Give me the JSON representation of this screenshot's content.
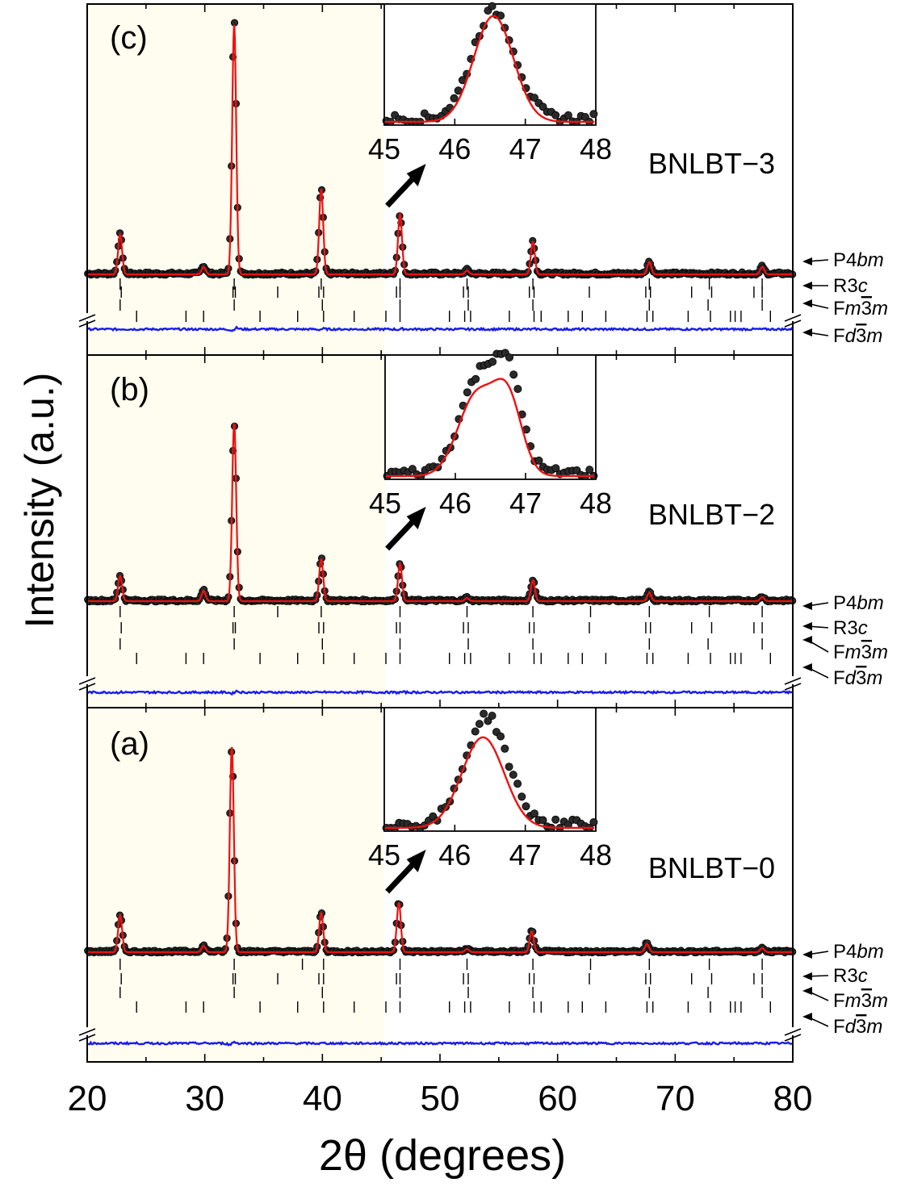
{
  "colors": {
    "panel_fill": "#fffdef",
    "fit": "#ee1111",
    "observed_fill": "#2a2a2a",
    "observed_stroke": "#000000",
    "difference": "#1a1aee",
    "frame": "#000000"
  },
  "chart_data": {
    "type": "scatter",
    "description_type": "stacked XRD Rietveld refinement panels",
    "xlabel": "2θ (degrees)",
    "ylabel": "Intensity (a.u.)",
    "xlim": [
      20,
      80
    ],
    "x_ticks": [
      "20",
      "30",
      "40",
      "50",
      "60",
      "70",
      "80"
    ],
    "phase_labels": [
      {
        "prefix": "P4",
        "italic": "bm",
        "bar": ""
      },
      {
        "prefix": "R3",
        "italic": "c",
        "bar": ""
      },
      {
        "prefix": "F",
        "italic": "m",
        "bar": "3",
        "suffix_italic": "m"
      },
      {
        "prefix": "F",
        "italic": "d",
        "bar": "3",
        "suffix_italic": "m"
      }
    ],
    "inset": {
      "xlim": [
        45,
        48
      ],
      "ticks": [
        "45",
        "46",
        "47",
        "48"
      ]
    },
    "panels": [
      {
        "id": "c",
        "tag": "(c)",
        "sample": "BNLBT−3",
        "peaks": [
          {
            "x": 22.8,
            "h": 0.16
          },
          {
            "x": 29.9,
            "h": 0.03
          },
          {
            "x": 32.5,
            "h": 1.0
          },
          {
            "x": 39.9,
            "h": 0.34
          },
          {
            "x": 46.6,
            "h": 0.24
          },
          {
            "x": 52.3,
            "h": 0.015
          },
          {
            "x": 57.9,
            "h": 0.13
          },
          {
            "x": 67.8,
            "h": 0.05
          },
          {
            "x": 77.4,
            "h": 0.03
          }
        ],
        "inset_peaks": [
          {
            "x": 46.55,
            "h": 1.0,
            "w": 0.3
          }
        ],
        "inset_fit": [
          {
            "x": 46.55,
            "h": 0.98,
            "w": 0.28
          }
        ],
        "ticks": [
          [
            22.8,
            32.5,
            39.9,
            46.6,
            52.3,
            57.9,
            67.8,
            72.9,
            77.4
          ],
          [
            22.9,
            32.4,
            32.6,
            36.2,
            39.7,
            40.1,
            46.3,
            46.6,
            52.0,
            52.4,
            57.6,
            58.0,
            62.7,
            67.5,
            67.9,
            71.4,
            73.1,
            76.7,
            77.4
          ],
          [
            22.8,
            32.5,
            40.0,
            46.6,
            52.4,
            57.9,
            67.8,
            72.8,
            77.4
          ],
          [
            24.2,
            28.4,
            29.9,
            34.7,
            37.9,
            40.1,
            42.7,
            45.4,
            46.6,
            50.8,
            52.1,
            52.6,
            55.9,
            58.0,
            58.6,
            60.9,
            62.1,
            64.1,
            67.6,
            68.1,
            71.1,
            73.0,
            74.7,
            75.1,
            75.6,
            78.1
          ]
        ]
      },
      {
        "id": "b",
        "tag": "(b)",
        "sample": "BNLBT−2",
        "peaks": [
          {
            "x": 22.8,
            "h": 0.12
          },
          {
            "x": 29.9,
            "h": 0.05
          },
          {
            "x": 32.5,
            "h": 0.85
          },
          {
            "x": 39.9,
            "h": 0.2
          },
          {
            "x": 46.6,
            "h": 0.18
          },
          {
            "x": 52.3,
            "h": 0.015
          },
          {
            "x": 57.9,
            "h": 0.1
          },
          {
            "x": 67.8,
            "h": 0.04
          },
          {
            "x": 77.4,
            "h": 0.02
          }
        ],
        "inset_peaks": [
          {
            "x": 46.32,
            "h": 0.82,
            "w": 0.26
          },
          {
            "x": 46.75,
            "h": 0.82,
            "w": 0.2
          }
        ],
        "inset_fit": [
          {
            "x": 46.3,
            "h": 0.72,
            "w": 0.26
          },
          {
            "x": 46.75,
            "h": 0.66,
            "w": 0.2
          }
        ],
        "ticks": [
          [
            22.8,
            32.5,
            36.2,
            39.9,
            46.6,
            52.3,
            57.9,
            62.8,
            67.8,
            72.9,
            77.4
          ],
          [
            22.9,
            32.4,
            32.6,
            39.7,
            40.1,
            46.3,
            46.6,
            52.0,
            52.4,
            57.6,
            58.0,
            62.7,
            67.5,
            67.9,
            71.4,
            73.1,
            76.7,
            77.4
          ],
          [
            22.8,
            32.5,
            40.0,
            46.6,
            52.4,
            57.9,
            67.8,
            72.8,
            77.4
          ],
          [
            24.2,
            28.4,
            29.9,
            34.7,
            37.9,
            40.1,
            42.7,
            45.4,
            46.6,
            50.8,
            52.1,
            52.6,
            55.9,
            58.0,
            58.6,
            60.9,
            62.1,
            64.1,
            67.6,
            68.1,
            71.1,
            73.0,
            74.7,
            75.1,
            75.6,
            78.1
          ]
        ]
      },
      {
        "id": "a",
        "tag": "(a)",
        "sample": "BNLBT−0",
        "peaks": [
          {
            "x": 22.8,
            "h": 0.18
          },
          {
            "x": 29.9,
            "h": 0.03
          },
          {
            "x": 32.3,
            "h": 1.0
          },
          {
            "x": 39.9,
            "h": 0.19
          },
          {
            "x": 46.5,
            "h": 0.24
          },
          {
            "x": 52.3,
            "h": 0.015
          },
          {
            "x": 57.8,
            "h": 0.1
          },
          {
            "x": 67.6,
            "h": 0.04
          },
          {
            "x": 77.4,
            "h": 0.02
          }
        ],
        "inset_peaks": [
          {
            "x": 46.45,
            "h": 0.98,
            "w": 0.3
          }
        ],
        "inset_fit": [
          {
            "x": 46.4,
            "h": 0.82,
            "w": 0.3
          }
        ],
        "ticks": [
          [
            22.8,
            32.5,
            38.3,
            40.1,
            46.6,
            52.3,
            57.9,
            62.8,
            67.8,
            72.9,
            77.4
          ],
          [
            22.9,
            32.4,
            32.6,
            36.2,
            39.7,
            40.1,
            46.3,
            46.6,
            52.0,
            52.4,
            57.6,
            58.0,
            62.7,
            67.5,
            67.9,
            71.4,
            73.1,
            76.7,
            77.4
          ],
          [
            22.8,
            32.5,
            40.0,
            46.6,
            52.4,
            57.9,
            67.8,
            72.8,
            77.4
          ],
          [
            24.2,
            28.4,
            29.9,
            34.7,
            37.9,
            40.1,
            42.7,
            45.4,
            46.6,
            50.8,
            52.1,
            52.6,
            55.9,
            58.0,
            58.6,
            60.9,
            62.1,
            64.1,
            67.6,
            68.1,
            71.1,
            73.0,
            74.7,
            75.1,
            75.6,
            78.1
          ]
        ]
      }
    ]
  }
}
